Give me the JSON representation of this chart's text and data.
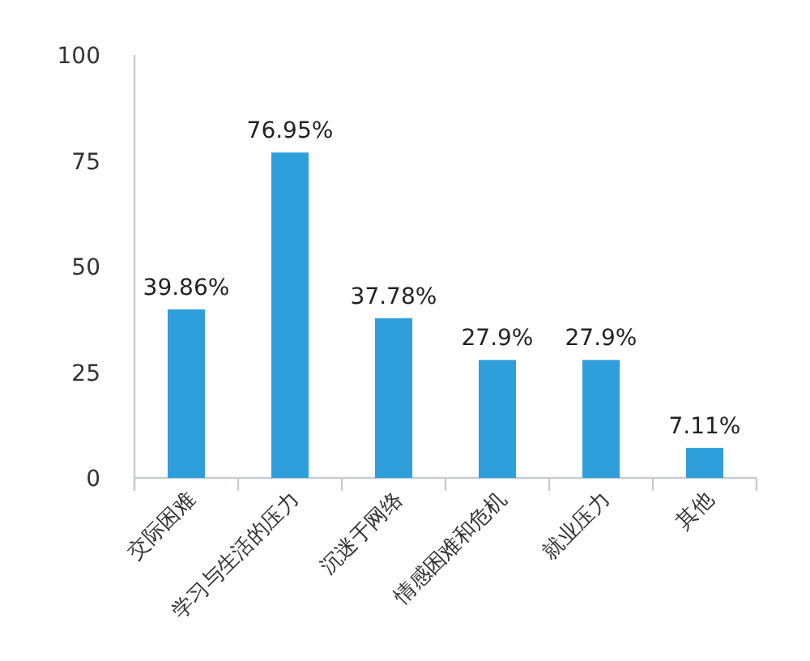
{
  "chart_data": {
    "type": "bar",
    "categories": [
      "交际困难",
      "学习与生活的压力",
      "沉迷于网络",
      "情感困难和危机",
      "就业压力",
      "其他"
    ],
    "values": [
      39.86,
      76.95,
      37.78,
      27.9,
      27.9,
      7.11
    ],
    "value_labels": [
      "39.86%",
      "76.95%",
      "37.78%",
      "27.9%",
      "27.9%",
      "7.11%"
    ],
    "color": "#2e9fdb",
    "ylim": [
      0,
      100
    ],
    "yticks": [
      0,
      25,
      50,
      75,
      100
    ],
    "grid": false
  }
}
